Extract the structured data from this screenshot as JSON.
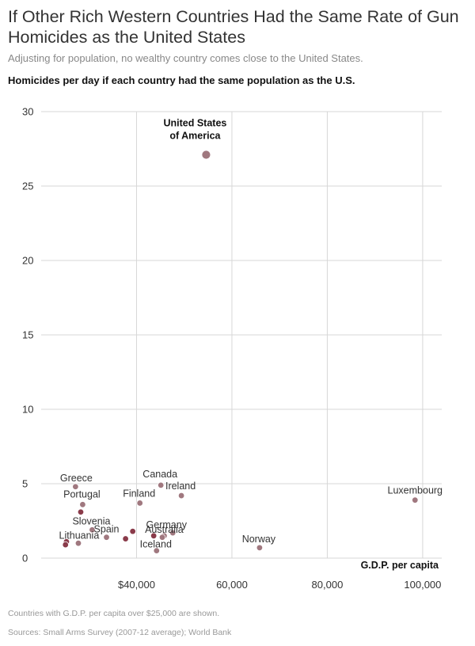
{
  "header": {
    "title": "If Other Rich Western Countries Had the Same Rate of Gun Homicides as the United States",
    "subtitle": "Adjusting for population, no wealthy country comes close to the United States.",
    "chart_heading": "Homicides per day if each country had the same population as the U.S."
  },
  "footer": {
    "note": "Countries with G.D.P. per capita over $25,000 are shown.",
    "source": "Sources: Small Arms Survey (2007-12 average); World Bank"
  },
  "colors": {
    "dot": "#a0787f",
    "dot_dark": "#8a3b4a",
    "grid": "#d7d7d7",
    "text": "#333333"
  },
  "chart_data": {
    "type": "scatter",
    "title": "Homicides per day if each country had the same population as the U.S.",
    "xlabel": "G.D.P. per capita",
    "ylabel": "",
    "xlim": [
      20000,
      104000
    ],
    "ylim": [
      0,
      30
    ],
    "x_ticks": [
      40000,
      60000,
      80000,
      100000
    ],
    "x_tick_labels": [
      "$40,000",
      "60,000",
      "80,000",
      "100,000"
    ],
    "y_ticks": [
      0,
      5,
      10,
      15,
      20,
      25,
      30
    ],
    "y_tick_labels": [
      "0",
      "5",
      "10",
      "15",
      "20",
      "25",
      "30"
    ],
    "grid": true,
    "points": [
      {
        "name": "United States of America",
        "label_lines": [
          "United States",
          "of America"
        ],
        "x": 54600,
        "y": 27.1,
        "size": "large",
        "shade": "light",
        "emphasis": true
      },
      {
        "name": "Greece",
        "x": 27200,
        "y": 4.8,
        "shade": "light"
      },
      {
        "name": "Portugal",
        "x": 28700,
        "y": 3.6,
        "shade": "light"
      },
      {
        "name": "",
        "x": 28300,
        "y": 3.1,
        "shade": "dark"
      },
      {
        "name": "Slovenia",
        "x": 30700,
        "y": 1.9,
        "shade": "light"
      },
      {
        "name": "Spain",
        "x": 33700,
        "y": 1.4,
        "shade": "light"
      },
      {
        "name": "Lithuania",
        "x": 25300,
        "y": 1.1,
        "shade": "dark"
      },
      {
        "name": "",
        "x": 25100,
        "y": 0.9,
        "shade": "dark"
      },
      {
        "name": "",
        "x": 27800,
        "y": 1.0,
        "shade": "light"
      },
      {
        "name": "",
        "x": 37700,
        "y": 1.3,
        "shade": "dark"
      },
      {
        "name": "",
        "x": 39200,
        "y": 1.8,
        "shade": "dark"
      },
      {
        "name": "Finland",
        "x": 40700,
        "y": 3.7,
        "shade": "light"
      },
      {
        "name": "Canada",
        "x": 45100,
        "y": 4.9,
        "shade": "light"
      },
      {
        "name": "Ireland",
        "x": 49400,
        "y": 4.2,
        "shade": "light"
      },
      {
        "name": "Germany",
        "x": 47600,
        "y": 1.7,
        "shade": "light"
      },
      {
        "name": "Australia",
        "x": 45800,
        "y": 1.5,
        "shade": "light"
      },
      {
        "name": "",
        "x": 43600,
        "y": 1.5,
        "shade": "dark"
      },
      {
        "name": "",
        "x": 45400,
        "y": 1.4,
        "shade": "light"
      },
      {
        "name": "Iceland",
        "x": 44200,
        "y": 0.5,
        "shade": "light"
      },
      {
        "name": "Norway",
        "x": 65800,
        "y": 0.7,
        "shade": "light"
      },
      {
        "name": "Luxembourg",
        "x": 98400,
        "y": 3.9,
        "shade": "light"
      }
    ]
  }
}
